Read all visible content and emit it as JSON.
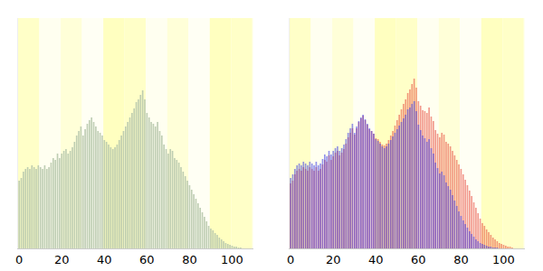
{
  "chart_data": [
    {
      "type": "bar",
      "x": [
        0,
        1,
        2,
        3,
        4,
        5,
        6,
        7,
        8,
        9,
        10,
        11,
        12,
        13,
        14,
        15,
        16,
        17,
        18,
        19,
        20,
        21,
        22,
        23,
        24,
        25,
        26,
        27,
        28,
        29,
        30,
        31,
        32,
        33,
        34,
        35,
        36,
        37,
        38,
        39,
        40,
        41,
        42,
        43,
        44,
        45,
        46,
        47,
        48,
        49,
        50,
        51,
        52,
        53,
        54,
        55,
        56,
        57,
        58,
        59,
        60,
        61,
        62,
        63,
        64,
        65,
        66,
        67,
        68,
        69,
        70,
        71,
        72,
        73,
        74,
        75,
        76,
        77,
        78,
        79,
        80,
        81,
        82,
        83,
        84,
        85,
        86,
        87,
        88,
        89,
        90,
        91,
        92,
        93,
        94,
        95,
        96,
        97,
        98,
        99,
        100,
        101,
        102,
        103,
        104
      ],
      "series": [
        {
          "color": "#b9c9ae",
          "values": [
            75,
            78,
            85,
            88,
            90,
            88,
            92,
            90,
            88,
            92,
            90,
            88,
            92,
            88,
            90,
            95,
            100,
            98,
            105,
            100,
            105,
            108,
            110,
            105,
            108,
            112,
            118,
            125,
            130,
            135,
            125,
            132,
            138,
            142,
            145,
            140,
            135,
            130,
            128,
            125,
            120,
            118,
            115,
            112,
            110,
            112,
            115,
            120,
            125,
            130,
            135,
            140,
            145,
            150,
            155,
            162,
            165,
            170,
            175,
            165,
            150,
            145,
            140,
            138,
            135,
            140,
            130,
            125,
            115,
            110,
            105,
            110,
            108,
            100,
            98,
            95,
            90,
            85,
            80,
            75,
            70,
            65,
            60,
            55,
            50,
            45,
            40,
            35,
            30,
            25,
            22,
            20,
            17,
            15,
            12,
            10,
            8,
            6,
            5,
            4,
            3,
            2,
            2,
            1,
            1
          ]
        }
      ],
      "xlim": [
        -0.5,
        110
      ],
      "xticks": [
        0,
        20,
        40,
        60,
        80,
        100
      ],
      "ylim": [
        0,
        255
      ],
      "tick_labels": "x"
    },
    {
      "type": "bar",
      "x": [
        0,
        1,
        2,
        3,
        4,
        5,
        6,
        7,
        8,
        9,
        10,
        11,
        12,
        13,
        14,
        15,
        16,
        17,
        18,
        19,
        20,
        21,
        22,
        23,
        24,
        25,
        26,
        27,
        28,
        29,
        30,
        31,
        32,
        33,
        34,
        35,
        36,
        37,
        38,
        39,
        40,
        41,
        42,
        43,
        44,
        45,
        46,
        47,
        48,
        49,
        50,
        51,
        52,
        53,
        54,
        55,
        56,
        57,
        58,
        59,
        60,
        61,
        62,
        63,
        64,
        65,
        66,
        67,
        68,
        69,
        70,
        71,
        72,
        73,
        74,
        75,
        76,
        77,
        78,
        79,
        80,
        81,
        82,
        83,
        84,
        85,
        86,
        87,
        88,
        89,
        90,
        91,
        92,
        93,
        94,
        95,
        96,
        97,
        98,
        99,
        100,
        101,
        102,
        103,
        104
      ],
      "series": [
        {
          "color": "#e8443a",
          "values": [
            72,
            75,
            82,
            86,
            88,
            86,
            90,
            88,
            86,
            90,
            88,
            86,
            90,
            86,
            88,
            93,
            98,
            96,
            103,
            98,
            102,
            106,
            108,
            103,
            106,
            110,
            116,
            123,
            128,
            133,
            126,
            133,
            140,
            144,
            147,
            142,
            137,
            132,
            130,
            127,
            122,
            121,
            118,
            115,
            114,
            116,
            120,
            125,
            130,
            136,
            142,
            148,
            154,
            160,
            165,
            172,
            176,
            182,
            188,
            178,
            163,
            158,
            153,
            152,
            150,
            156,
            146,
            141,
            131,
            127,
            123,
            128,
            126,
            118,
            116,
            113,
            108,
            103,
            98,
            93,
            88,
            82,
            76,
            70,
            64,
            58,
            51,
            45,
            39,
            33,
            28,
            25,
            21,
            18,
            15,
            12,
            10,
            8,
            6,
            5,
            4,
            3,
            2,
            2,
            1
          ]
        },
        {
          "color": "#3a3ae8",
          "values": [
            78,
            82,
            88,
            92,
            94,
            92,
            96,
            94,
            92,
            96,
            94,
            92,
            96,
            92,
            94,
            99,
            104,
            102,
            108,
            104,
            108,
            111,
            113,
            108,
            111,
            115,
            121,
            128,
            133,
            138,
            128,
            135,
            141,
            145,
            148,
            143,
            138,
            133,
            130,
            127,
            121,
            119,
            116,
            113,
            111,
            113,
            116,
            120,
            124,
            128,
            132,
            136,
            140,
            144,
            148,
            154,
            156,
            160,
            163,
            152,
            137,
            131,
            125,
            122,
            118,
            121,
            111,
            105,
            95,
            89,
            83,
            85,
            81,
            73,
            69,
            65,
            59,
            53,
            47,
            41,
            36,
            31,
            27,
            23,
            19,
            16,
            13,
            10,
            8,
            6,
            5,
            4,
            3,
            2,
            2,
            1,
            1,
            1,
            0,
            0,
            0,
            0,
            0,
            0,
            0
          ]
        }
      ],
      "xlim": [
        -0.5,
        110
      ],
      "xticks": [
        0,
        20,
        40,
        60,
        80,
        100
      ],
      "ylim": [
        0,
        255
      ],
      "tick_labels": "x"
    }
  ]
}
